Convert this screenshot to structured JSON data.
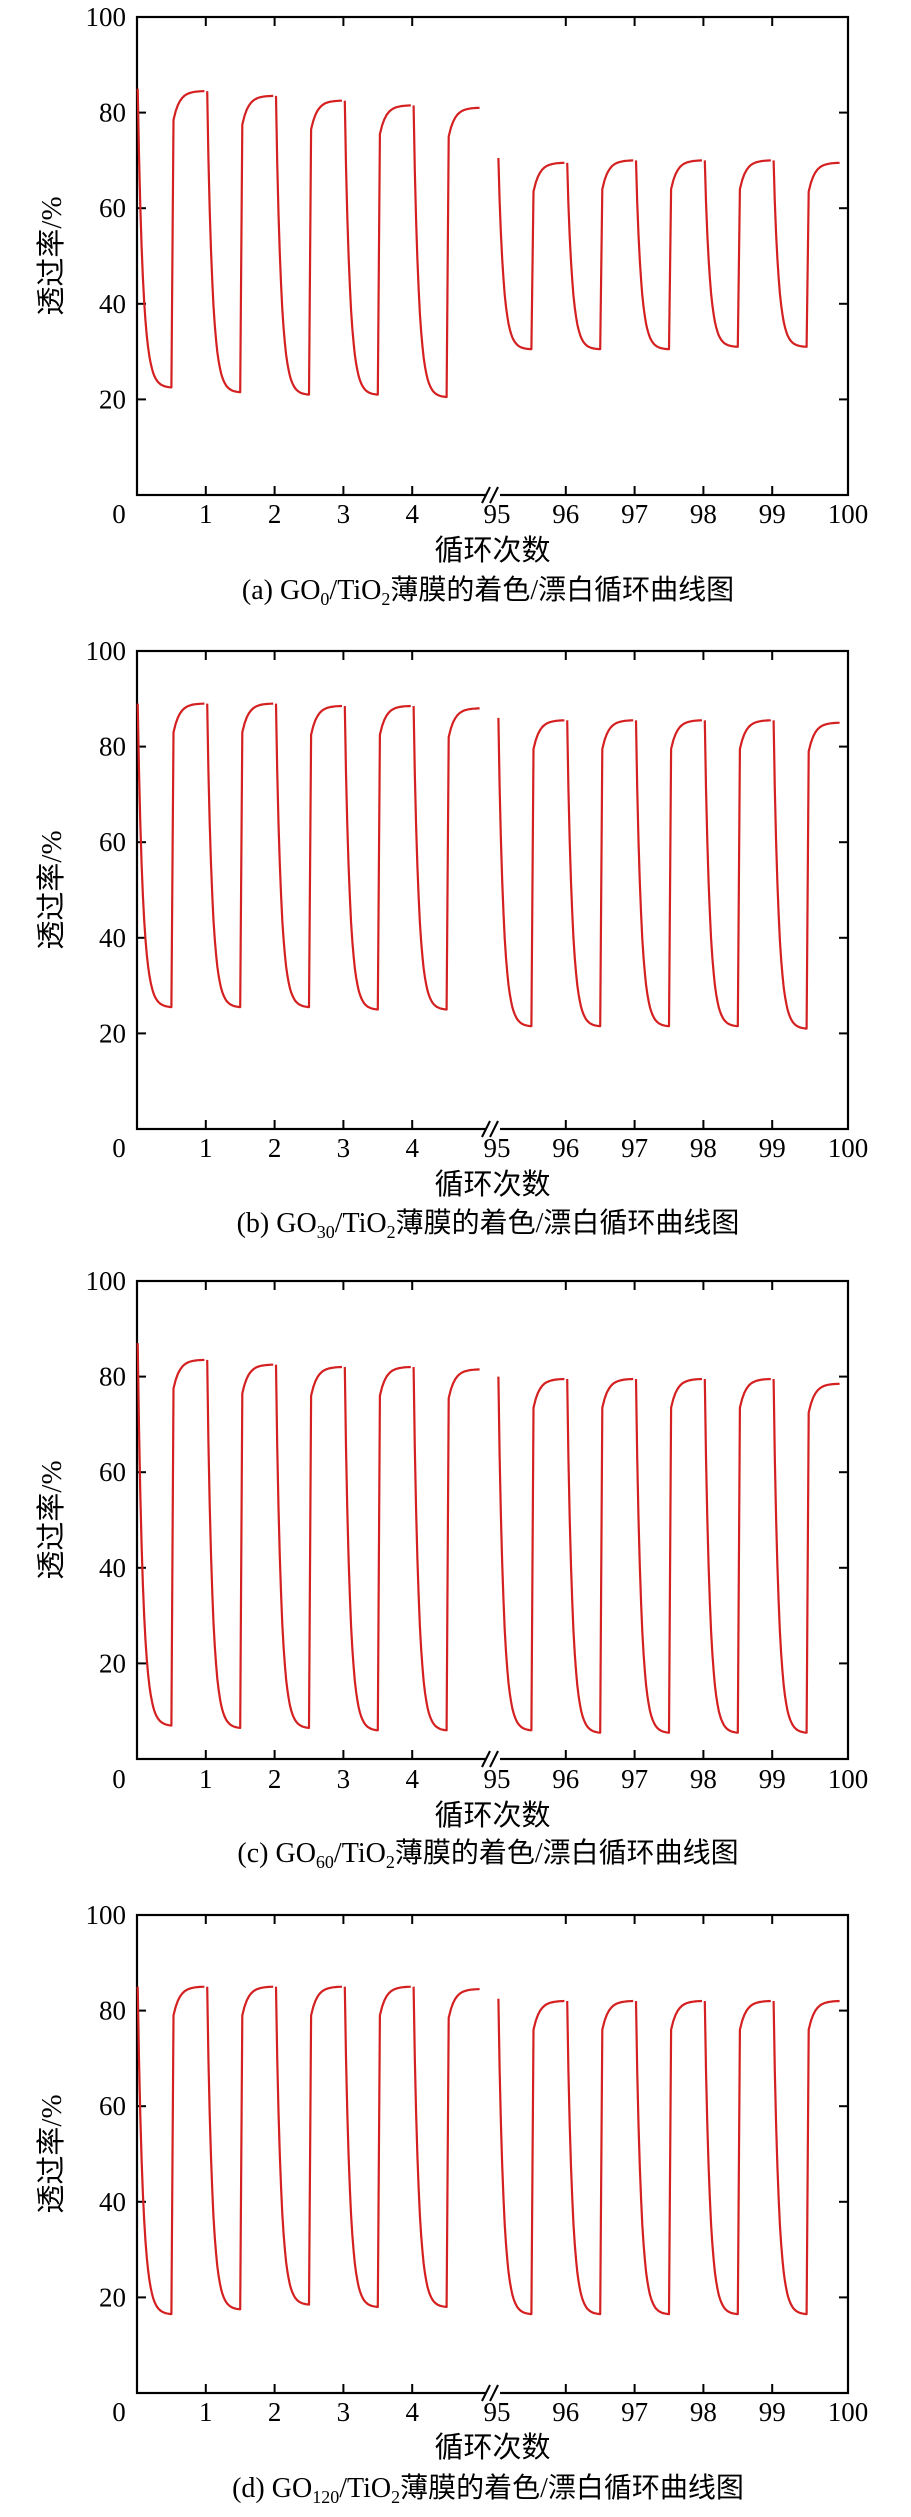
{
  "figure": {
    "panels": [
      {
        "caption": {
          "prefix": "(a) GO",
          "sub1": "0",
          "mid": "/TiO",
          "sub2": "2",
          "suffix": "薄膜的着色/漂白循环曲线图"
        },
        "ylabel": "透过率/%",
        "xlabel": "循环次数"
      },
      {
        "caption": {
          "prefix": "(b) GO",
          "sub1": "30",
          "mid": "/TiO",
          "sub2": "2",
          "suffix": "薄膜的着色/漂白循环曲线图"
        },
        "ylabel": "透过率/%",
        "xlabel": "循环次数"
      },
      {
        "caption": {
          "prefix": "(c) GO",
          "sub1": "60",
          "mid": "/TiO",
          "sub2": "2",
          "suffix": "薄膜的着色/漂白循环曲线图"
        },
        "ylabel": "透过率/%",
        "xlabel": "循环次数"
      },
      {
        "caption": {
          "prefix": "(d) GO",
          "sub1": "120",
          "mid": "/TiO",
          "sub2": "2",
          "suffix": "薄膜的着色/漂白循环曲线图"
        },
        "ylabel": "透过率/%",
        "xlabel": "循环次数"
      }
    ]
  },
  "colors": {
    "curve": "#d42020",
    "axis": "#000000"
  },
  "chart_data": [
    {
      "type": "line",
      "xlabel": "循环次数",
      "ylabel": "透过率/%",
      "ylim": [
        0,
        100
      ],
      "xlim": [
        0,
        100
      ],
      "x_axis_break": [
        5,
        95
      ],
      "x_ticks_left": [
        "0",
        "1",
        "2",
        "3",
        "4"
      ],
      "x_ticks_right": [
        "95",
        "96",
        "97",
        "98",
        "99",
        "100"
      ],
      "y_ticks": [
        "20",
        "40",
        "60",
        "80",
        "100"
      ],
      "series": [
        {
          "values_left_cycles": [
            {
              "start": 85,
              "colored": 22.5,
              "bleached": 84.5
            },
            {
              "start": 84.5,
              "colored": 21.5,
              "bleached": 83.5
            },
            {
              "start": 83.5,
              "colored": 21,
              "bleached": 82.5
            },
            {
              "start": 82.5,
              "colored": 21,
              "bleached": 81.5
            },
            {
              "start": 81.5,
              "colored": 20.5,
              "bleached": 81
            }
          ],
          "values_right_cycles": [
            {
              "start": 70.5,
              "colored": 30.5,
              "bleached": 69.5
            },
            {
              "start": 69.5,
              "colored": 30.5,
              "bleached": 70
            },
            {
              "start": 70,
              "colored": 30.5,
              "bleached": 70
            },
            {
              "start": 70,
              "colored": 31,
              "bleached": 70
            },
            {
              "start": 70,
              "colored": 31,
              "bleached": 69.5
            }
          ]
        }
      ]
    },
    {
      "type": "line",
      "xlabel": "循环次数",
      "ylabel": "透过率/%",
      "ylim": [
        0,
        100
      ],
      "xlim": [
        0,
        100
      ],
      "x_axis_break": [
        5,
        95
      ],
      "x_ticks_left": [
        "0",
        "1",
        "2",
        "3",
        "4"
      ],
      "x_ticks_right": [
        "95",
        "96",
        "97",
        "98",
        "99",
        "100"
      ],
      "y_ticks": [
        "20",
        "40",
        "60",
        "80",
        "100"
      ],
      "series": [
        {
          "values_left_cycles": [
            {
              "start": 89,
              "colored": 25.5,
              "bleached": 89
            },
            {
              "start": 89,
              "colored": 25.5,
              "bleached": 89
            },
            {
              "start": 89,
              "colored": 25.5,
              "bleached": 88.5
            },
            {
              "start": 88.5,
              "colored": 25,
              "bleached": 88.5
            },
            {
              "start": 88.5,
              "colored": 25,
              "bleached": 88
            }
          ],
          "values_right_cycles": [
            {
              "start": 86,
              "colored": 21.5,
              "bleached": 85.5
            },
            {
              "start": 85.5,
              "colored": 21.5,
              "bleached": 85.5
            },
            {
              "start": 85.5,
              "colored": 21.5,
              "bleached": 85.5
            },
            {
              "start": 85.5,
              "colored": 21.5,
              "bleached": 85.5
            },
            {
              "start": 85.5,
              "colored": 21,
              "bleached": 85
            }
          ]
        }
      ]
    },
    {
      "type": "line",
      "xlabel": "循环次数",
      "ylabel": "透过率/%",
      "ylim": [
        0,
        100
      ],
      "xlim": [
        0,
        100
      ],
      "x_axis_break": [
        5,
        95
      ],
      "x_ticks_left": [
        "0",
        "1",
        "2",
        "3",
        "4"
      ],
      "x_ticks_right": [
        "95",
        "96",
        "97",
        "98",
        "99",
        "100"
      ],
      "y_ticks": [
        "20",
        "40",
        "60",
        "80",
        "100"
      ],
      "series": [
        {
          "values_left_cycles": [
            {
              "start": 87,
              "colored": 7,
              "bleached": 83.5
            },
            {
              "start": 83.5,
              "colored": 6.5,
              "bleached": 82.5
            },
            {
              "start": 82.5,
              "colored": 6.5,
              "bleached": 82
            },
            {
              "start": 82,
              "colored": 6,
              "bleached": 82
            },
            {
              "start": 82,
              "colored": 6,
              "bleached": 81.5
            }
          ],
          "values_right_cycles": [
            {
              "start": 80,
              "colored": 6,
              "bleached": 79.5
            },
            {
              "start": 79.5,
              "colored": 5.5,
              "bleached": 79.5
            },
            {
              "start": 79.5,
              "colored": 5.5,
              "bleached": 79.5
            },
            {
              "start": 79.5,
              "colored": 5.5,
              "bleached": 79.5
            },
            {
              "start": 79.5,
              "colored": 5.5,
              "bleached": 78.5
            }
          ]
        }
      ]
    },
    {
      "type": "line",
      "xlabel": "循环次数",
      "ylabel": "透过率/%",
      "ylim": [
        0,
        100
      ],
      "xlim": [
        0,
        100
      ],
      "x_axis_break": [
        5,
        95
      ],
      "x_ticks_left": [
        "0",
        "1",
        "2",
        "3",
        "4"
      ],
      "x_ticks_right": [
        "95",
        "96",
        "97",
        "98",
        "99",
        "100"
      ],
      "y_ticks": [
        "20",
        "40",
        "60",
        "80",
        "100"
      ],
      "series": [
        {
          "values_left_cycles": [
            {
              "start": 85,
              "colored": 16.5,
              "bleached": 85
            },
            {
              "start": 85,
              "colored": 17.5,
              "bleached": 85
            },
            {
              "start": 85,
              "colored": 18.5,
              "bleached": 85
            },
            {
              "start": 85,
              "colored": 18,
              "bleached": 85
            },
            {
              "start": 85,
              "colored": 18,
              "bleached": 84.5
            }
          ],
          "values_right_cycles": [
            {
              "start": 82.5,
              "colored": 16.5,
              "bleached": 82
            },
            {
              "start": 82,
              "colored": 16.5,
              "bleached": 82
            },
            {
              "start": 82,
              "colored": 16.5,
              "bleached": 82
            },
            {
              "start": 82,
              "colored": 16.5,
              "bleached": 82
            },
            {
              "start": 82,
              "colored": 16.5,
              "bleached": 82
            }
          ]
        }
      ]
    }
  ]
}
